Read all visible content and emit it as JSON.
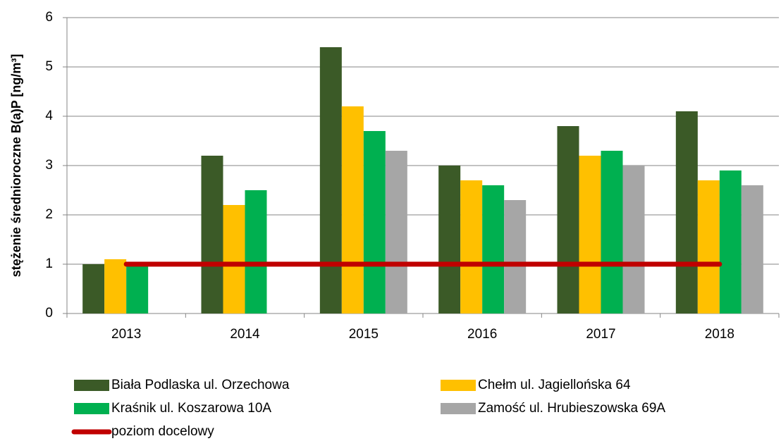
{
  "chart_data": {
    "type": "bar",
    "y_label": "stężenie średnioroczne B(a)P [ng/m³]",
    "categories": [
      "2013",
      "2014",
      "2015",
      "2016",
      "2017",
      "2018"
    ],
    "series": [
      {
        "name": "Biała Podlaska ul. Orzechowa",
        "color": "#3b5a27",
        "values": [
          1.0,
          3.2,
          5.4,
          3.0,
          3.8,
          4.1
        ]
      },
      {
        "name": "Chełm ul. Jagiellońska 64",
        "color": "#ffc000",
        "values": [
          1.1,
          2.2,
          4.2,
          2.7,
          3.2,
          2.7
        ]
      },
      {
        "name": "Kraśnik ul. Koszarowa 10A",
        "color": "#00b050",
        "values": [
          1.0,
          2.5,
          3.7,
          2.6,
          3.3,
          2.9
        ]
      },
      {
        "name": "Zamość ul. Hrubieszowska 69A",
        "color": "#a6a6a6",
        "values": [
          null,
          null,
          3.3,
          2.3,
          3.0,
          2.6
        ]
      },
      {
        "name": "poziom docelowy",
        "color": "#c00000",
        "type": "line",
        "values": [
          1,
          1,
          1,
          1,
          1,
          1
        ]
      }
    ],
    "ylim": [
      0,
      6
    ],
    "yticks": [
      0,
      1,
      2,
      3,
      4,
      5,
      6
    ],
    "grid": true
  }
}
